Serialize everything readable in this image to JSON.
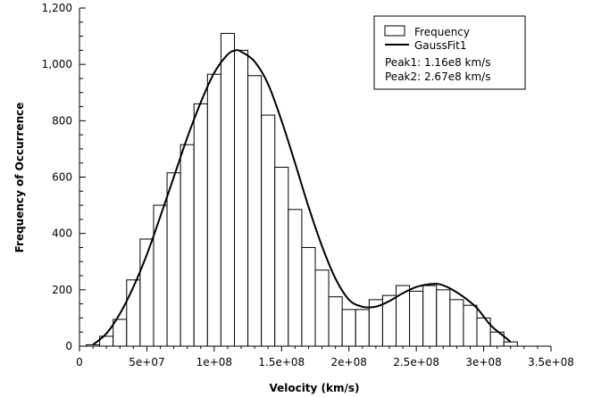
{
  "chart_data": {
    "type": "bar",
    "xlabel": "Velocity (km/s)",
    "ylabel": "Frequency of Occurrence",
    "xlim": [
      0,
      350000000
    ],
    "ylim": [
      0,
      1200
    ],
    "xticks": [
      0,
      50000000,
      100000000,
      150000000,
      200000000,
      250000000,
      300000000,
      350000000
    ],
    "xtick_labels": [
      "0",
      "5e+07",
      "1e+08",
      "1.5e+08",
      "2e+08",
      "2.5e+08",
      "3e+08",
      "3.5e+08"
    ],
    "yticks": [
      0,
      200,
      400,
      600,
      800,
      1000,
      1200
    ],
    "ytick_labels": [
      "0",
      "200",
      "400",
      "600",
      "800",
      "1,000",
      "1,200"
    ],
    "bin_width": 10000000,
    "bin_starts": [
      5000000,
      15000000,
      25000000,
      35000000,
      45000000,
      55000000,
      65000000,
      75000000,
      85000000,
      95000000,
      105000000,
      115000000,
      125000000,
      135000000,
      145000000,
      155000000,
      165000000,
      175000000,
      185000000,
      195000000,
      205000000,
      215000000,
      225000000,
      235000000,
      245000000,
      255000000,
      265000000,
      275000000,
      285000000,
      295000000,
      305000000,
      315000000
    ],
    "series": [
      {
        "name": "Frequency",
        "kind": "histogram",
        "values": [
          5,
          35,
          95,
          235,
          380,
          500,
          615,
          715,
          860,
          965,
          1110,
          1050,
          960,
          820,
          635,
          485,
          350,
          270,
          175,
          130,
          130,
          165,
          180,
          215,
          195,
          215,
          200,
          165,
          145,
          100,
          50,
          15
        ]
      },
      {
        "name": "GaussFit1",
        "kind": "line",
        "x": [
          10000000,
          20000000,
          30000000,
          40000000,
          50000000,
          60000000,
          70000000,
          80000000,
          90000000,
          100000000,
          110000000,
          116000000,
          120000000,
          130000000,
          140000000,
          150000000,
          160000000,
          170000000,
          180000000,
          190000000,
          200000000,
          210000000,
          220000000,
          230000000,
          240000000,
          250000000,
          260000000,
          267000000,
          275000000,
          285000000,
          295000000,
          305000000,
          315000000,
          320000000
        ],
        "y": [
          5,
          45,
          115,
          210,
          325,
          460,
          600,
          740,
          865,
          970,
          1035,
          1050,
          1045,
          1010,
          930,
          800,
          650,
          495,
          355,
          240,
          165,
          140,
          140,
          160,
          188,
          210,
          220,
          220,
          205,
          175,
          135,
          75,
          35,
          15
        ]
      }
    ],
    "legend": {
      "position": "top-right",
      "entries": [
        "Frequency",
        "GaussFit1"
      ],
      "annotations": [
        "Peak1: 1.16e8 km/s",
        "Peak2: 2.67e8 km/s"
      ]
    },
    "grid": false
  }
}
